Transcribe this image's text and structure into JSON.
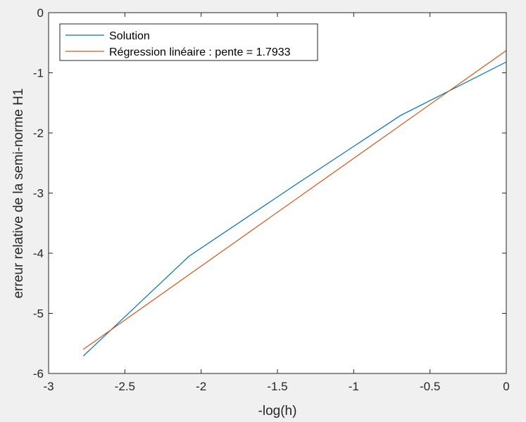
{
  "chart_data": {
    "type": "line",
    "title": "",
    "xlabel": "-log(h)",
    "ylabel": "erreur relative de la semi-norme H1",
    "xlim": [
      -3,
      0
    ],
    "ylim": [
      -6,
      0
    ],
    "xticks": [
      -3,
      -2.5,
      -2,
      -1.5,
      -1,
      -0.5,
      0
    ],
    "yticks": [
      0,
      -1,
      -2,
      -3,
      -4,
      -5,
      -6
    ],
    "xtick_labels": [
      "-3",
      "-2.5",
      "-2",
      "-1.5",
      "-1",
      "-0.5",
      "0"
    ],
    "ytick_labels": [
      "0",
      "-1",
      "-2",
      "-3",
      "-4",
      "-5",
      "-6"
    ],
    "grid": false,
    "legend_position": "top-left",
    "series": [
      {
        "name": "Solution",
        "color": "#0072bd",
        "x": [
          -2.7726,
          -2.0794,
          -1.3863,
          -0.6931,
          0
        ],
        "y": [
          -5.71,
          -4.05,
          -2.87,
          -1.71,
          -0.82
        ]
      },
      {
        "name": "Régression linéaire : pente = 1.7933",
        "color": "#d95319",
        "x": [
          -2.7726,
          0
        ],
        "y": [
          -5.6,
          -0.63
        ]
      }
    ]
  }
}
